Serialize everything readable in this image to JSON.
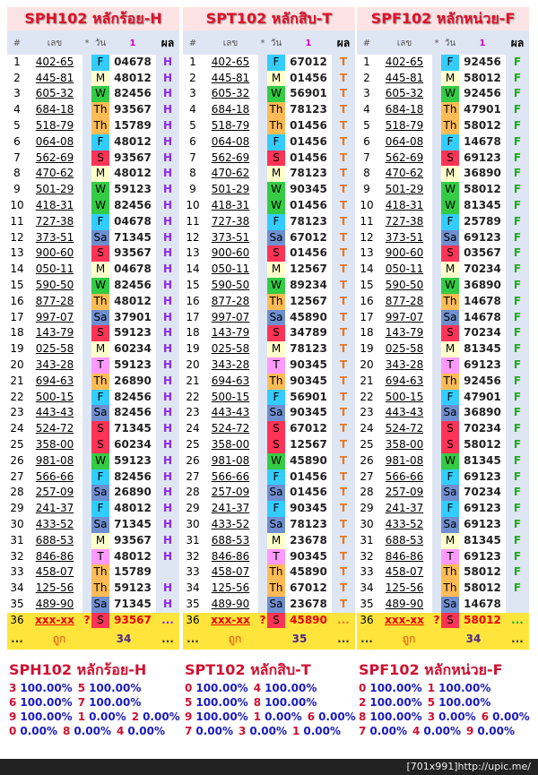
{
  "rows": [
    {
      "n": 1,
      "code": "402-65",
      "day": "F"
    },
    {
      "n": 2,
      "code": "445-81",
      "day": "M"
    },
    {
      "n": 3,
      "code": "605-32",
      "day": "W"
    },
    {
      "n": 4,
      "code": "684-18",
      "day": "Th"
    },
    {
      "n": 5,
      "code": "518-79",
      "day": "Th"
    },
    {
      "n": 6,
      "code": "064-08",
      "day": "F"
    },
    {
      "n": 7,
      "code": "562-69",
      "day": "S"
    },
    {
      "n": 8,
      "code": "470-62",
      "day": "M"
    },
    {
      "n": 9,
      "code": "501-29",
      "day": "W"
    },
    {
      "n": 10,
      "code": "418-31",
      "day": "W"
    },
    {
      "n": 11,
      "code": "727-38",
      "day": "F"
    },
    {
      "n": 12,
      "code": "373-51",
      "day": "Sa"
    },
    {
      "n": 13,
      "code": "900-60",
      "day": "S"
    },
    {
      "n": 14,
      "code": "050-11",
      "day": "M"
    },
    {
      "n": 15,
      "code": "590-50",
      "day": "W"
    },
    {
      "n": 16,
      "code": "877-28",
      "day": "Th"
    },
    {
      "n": 17,
      "code": "997-07",
      "day": "Sa"
    },
    {
      "n": 18,
      "code": "143-79",
      "day": "S"
    },
    {
      "n": 19,
      "code": "025-58",
      "day": "M"
    },
    {
      "n": 20,
      "code": "343-28",
      "day": "T"
    },
    {
      "n": 21,
      "code": "694-63",
      "day": "Th"
    },
    {
      "n": 22,
      "code": "500-15",
      "day": "F"
    },
    {
      "n": 23,
      "code": "443-43",
      "day": "Sa"
    },
    {
      "n": 24,
      "code": "524-72",
      "day": "S"
    },
    {
      "n": 25,
      "code": "358-00",
      "day": "S"
    },
    {
      "n": 26,
      "code": "981-08",
      "day": "W"
    },
    {
      "n": 27,
      "code": "566-66",
      "day": "F"
    },
    {
      "n": 28,
      "code": "257-09",
      "day": "Sa"
    },
    {
      "n": 29,
      "code": "241-37",
      "day": "F"
    },
    {
      "n": 30,
      "code": "433-52",
      "day": "Sa"
    },
    {
      "n": 31,
      "code": "688-53",
      "day": "M"
    },
    {
      "n": 32,
      "code": "846-86",
      "day": "T"
    },
    {
      "n": 33,
      "code": "458-07",
      "day": "Th"
    },
    {
      "n": 34,
      "code": "125-56",
      "day": "Th"
    },
    {
      "n": 35,
      "code": "489-90",
      "day": "Sa"
    },
    {
      "n": 36,
      "code": "xxx-xx",
      "mark": "?",
      "day": "S"
    }
  ],
  "day_colors": {
    "F": "#33ccff",
    "M": "#ffffcc",
    "W": "#33cc44",
    "Th": "#ffbb55",
    "S": "#ff3355",
    "Sa": "#6f8fd0",
    "T": "#ff99ff"
  },
  "header": [
    "#",
    "เลข",
    "*",
    "วัน",
    "1",
    "ผล"
  ],
  "panels": [
    {
      "title": "SPH102 หลักร้อย-H",
      "color": "#8a2be2",
      "numbers": [
        "04678",
        "48012",
        "82456",
        "93567",
        "15789",
        "48012",
        "93567",
        "48012",
        "59123",
        "82456",
        "04678",
        "71345",
        "93567",
        "04678",
        "82456",
        "48012",
        "37901",
        "59123",
        "60234",
        "59123",
        "26890",
        "82456",
        "82456",
        "71345",
        "60234",
        "59123",
        "82456",
        "26890",
        "48012",
        "71345",
        "93567",
        "48012",
        "15789",
        "59123",
        "71345",
        "93567"
      ],
      "results": [
        "H",
        "H",
        "H",
        "H",
        "H",
        "H",
        "H",
        "H",
        "H",
        "H",
        "H",
        "H",
        "H",
        "H",
        "H",
        "H",
        "H",
        "H",
        "H",
        "H",
        "H",
        "H",
        "H",
        "H",
        "H",
        "H",
        "H",
        "H",
        "H",
        "H",
        "H",
        "H",
        null,
        "H",
        "H",
        "..."
      ],
      "footer": [
        "...",
        "ถูก",
        "34",
        "..."
      ],
      "stats_title": "SPH102 หลักร้อย-H",
      "stats": [
        [
          [
            "3",
            "100.00%"
          ],
          [
            "5",
            "100.00%"
          ]
        ],
        [
          [
            "6",
            "100.00%"
          ],
          [
            "7",
            "100.00%"
          ]
        ],
        [
          [
            "9",
            "100.00%"
          ],
          [
            "1",
            "0.00%"
          ],
          [
            "2",
            "0.00%"
          ]
        ],
        [
          [
            "0",
            "0.00%"
          ],
          [
            "8",
            "0.00%"
          ],
          [
            "4",
            "0.00%"
          ]
        ]
      ]
    },
    {
      "title": "SPT102 หลักสิบ-T",
      "color": "#e87722",
      "numbers": [
        "67012",
        "01456",
        "56901",
        "78123",
        "01456",
        "01456",
        "01456",
        "78123",
        "90345",
        "01456",
        "78123",
        "67012",
        "01456",
        "12567",
        "89234",
        "12567",
        "45890",
        "34789",
        "78123",
        "90345",
        "90345",
        "56901",
        "90345",
        "67012",
        "12567",
        "45890",
        "01456",
        "01456",
        "90345",
        "78123",
        "23678",
        "90345",
        "45890",
        "67012",
        "23678",
        "45890"
      ],
      "results": [
        "T",
        "T",
        "T",
        "T",
        "T",
        "T",
        "T",
        "T",
        "T",
        "T",
        "T",
        "T",
        "T",
        "T",
        "T",
        "T",
        "T",
        "T",
        "T",
        "T",
        "T",
        "T",
        "T",
        "T",
        "T",
        "T",
        "T",
        "T",
        "T",
        "T",
        "T",
        "T",
        "T",
        "T",
        "T",
        "..."
      ],
      "footer": [
        "...",
        "ถูก",
        "35",
        "..."
      ],
      "stats_title": "SPT102 หลักสิบ-T",
      "stats": [
        [
          [
            "0",
            "100.00%"
          ],
          [
            "4",
            "100.00%"
          ]
        ],
        [
          [
            "5",
            "100.00%"
          ],
          [
            "8",
            "100.00%"
          ]
        ],
        [
          [
            "9",
            "100.00%"
          ],
          [
            "1",
            "0.00%"
          ],
          [
            "6",
            "0.00%"
          ]
        ],
        [
          [
            "7",
            "0.00%"
          ],
          [
            "3",
            "0.00%"
          ],
          [
            "1",
            "0.00%"
          ]
        ]
      ]
    },
    {
      "title": "SPF102 หลักหน่วย-F",
      "color": "#22aa22",
      "numbers": [
        "92456",
        "58012",
        "92456",
        "47901",
        "58012",
        "14678",
        "69123",
        "36890",
        "58012",
        "81345",
        "25789",
        "69123",
        "03567",
        "70234",
        "36890",
        "14678",
        "14678",
        "70234",
        "81345",
        "69123",
        "92456",
        "47901",
        "36890",
        "70234",
        "58012",
        "81345",
        "69123",
        "70234",
        "69123",
        "69123",
        "81345",
        "69123",
        "58012",
        "58012",
        "14678",
        "58012"
      ],
      "results": [
        "F",
        "F",
        "F",
        "F",
        "F",
        "F",
        "F",
        "F",
        "F",
        "F",
        "F",
        "F",
        "F",
        "F",
        "F",
        "F",
        "F",
        "F",
        "F",
        "F",
        "F",
        "F",
        "F",
        "F",
        "F",
        "F",
        "F",
        "F",
        "F",
        "F",
        "F",
        "F",
        "F",
        "F",
        null,
        "..."
      ],
      "footer": [
        "...",
        "ถูก",
        "34",
        "..."
      ],
      "stats_title": "SPF102 หลักหน่วย-F",
      "stats": [
        [
          [
            "0",
            "100.00%"
          ],
          [
            "1",
            "100.00%"
          ]
        ],
        [
          [
            "2",
            "100.00%"
          ],
          [
            "5",
            "100.00%"
          ]
        ],
        [
          [
            "8",
            "100.00%"
          ],
          [
            "3",
            "0.00%"
          ],
          [
            "6",
            "0.00%"
          ]
        ],
        [
          [
            "7",
            "0.00%"
          ],
          [
            "4",
            "0.00%"
          ],
          [
            "9",
            "0.00%"
          ]
        ]
      ]
    }
  ],
  "watermark": "[701x991]http://upic.me/"
}
